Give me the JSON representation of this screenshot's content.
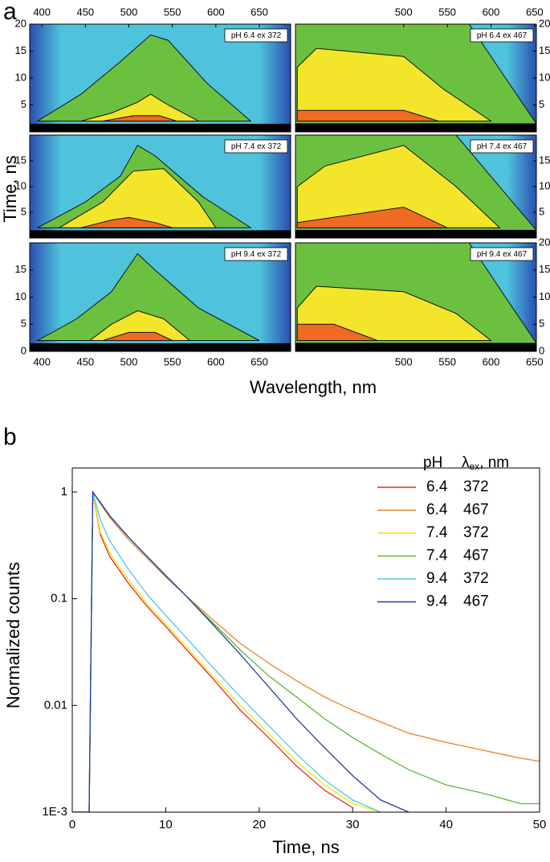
{
  "chart_data": [
    {
      "type": "contour",
      "label": "a",
      "xlabel": "Wavelength, nm",
      "ylabel": "Time, ns",
      "panels": [
        {
          "title": "pH 6.4 ex 372",
          "xlim": [
            386,
            686
          ],
          "ylim": [
            0,
            20
          ],
          "xaxis": "top",
          "yaxis": "left",
          "xticks": [
            400,
            450,
            500,
            550,
            600,
            650
          ],
          "yticks": [
            5,
            10,
            15,
            20
          ],
          "contours": [
            {
              "x": [
                395,
                445,
                490,
                525,
                545,
                590,
                640
              ],
              "y": [
                2,
                7,
                13,
                18,
                17,
                9,
                2
              ]
            },
            {
              "x": [
                445,
                480,
                510,
                525,
                545,
                580
              ],
              "y": [
                2,
                3.5,
                5.5,
                7,
                5,
                2
              ]
            },
            {
              "x": [
                470,
                505,
                535,
                555
              ],
              "y": [
                2,
                3,
                3,
                2
              ]
            }
          ]
        },
        {
          "title": "pH 6.4 ex 467",
          "xlim": [
            376,
            652
          ],
          "ylim": [
            0,
            20
          ],
          "xaxis": "top",
          "yaxis": "right",
          "xticks": [
            500,
            550,
            600,
            650
          ],
          "yticks": [
            5,
            10,
            15,
            20
          ],
          "contours": [
            {
              "x": [
                376,
                376,
                575,
                652,
                652
              ],
              "y": [
                1.5,
                20,
                20,
                1.5,
                1.5
              ]
            },
            {
              "x": [
                378,
                378,
                400,
                500,
                545,
                600
              ],
              "y": [
                2,
                12,
                15.5,
                14,
                8,
                2
              ]
            },
            {
              "x": [
                378,
                378,
                500,
                540
              ],
              "y": [
                2,
                4,
                4,
                2
              ]
            }
          ]
        },
        {
          "title": "pH 7.4 ex 372",
          "xlim": [
            386,
            686
          ],
          "ylim": [
            0,
            20
          ],
          "xaxis": "none",
          "yaxis": "left",
          "yticks": [
            5,
            10,
            15
          ],
          "contours": [
            {
              "x": [
                395,
                450,
                490,
                510,
                530,
                585,
                640
              ],
              "y": [
                2,
                7,
                12,
                18,
                16,
                8,
                2
              ]
            },
            {
              "x": [
                420,
                470,
                505,
                540,
                580,
                600
              ],
              "y": [
                2,
                7,
                13,
                13.5,
                7,
                2
              ]
            },
            {
              "x": [
                445,
                480,
                500,
                530,
                550
              ],
              "y": [
                2,
                3.5,
                4,
                3,
                2
              ]
            }
          ]
        },
        {
          "title": "pH 7.4 ex 467",
          "xlim": [
            376,
            652
          ],
          "ylim": [
            0,
            20
          ],
          "xaxis": "none",
          "yaxis": "right",
          "yticks": [
            5,
            10,
            15
          ],
          "contours": [
            {
              "x": [
                376,
                376,
                560,
                652,
                652
              ],
              "y": [
                1.5,
                20,
                20,
                1.5,
                1.5
              ]
            },
            {
              "x": [
                378,
                378,
                410,
                500,
                560,
                610
              ],
              "y": [
                2,
                10,
                14,
                18,
                10,
                2
              ]
            },
            {
              "x": [
                378,
                378,
                500,
                550
              ],
              "y": [
                2,
                3,
                6,
                2
              ]
            }
          ]
        },
        {
          "title": "pH 9.4 ex 372",
          "xlim": [
            386,
            686
          ],
          "ylim": [
            0,
            20
          ],
          "xaxis": "bottom",
          "yaxis": "left",
          "xticks": [
            400,
            450,
            500,
            550,
            600,
            650
          ],
          "yticks": [
            0,
            5,
            10,
            15
          ],
          "contours": [
            {
              "x": [
                395,
                440,
                480,
                510,
                530,
                580,
                650
              ],
              "y": [
                2,
                6,
                11,
                18,
                15,
                8,
                2
              ]
            },
            {
              "x": [
                455,
                480,
                510,
                540,
                570
              ],
              "y": [
                2,
                5,
                7.5,
                6,
                2
              ]
            },
            {
              "x": [
                470,
                500,
                530,
                550
              ],
              "y": [
                2,
                3.5,
                3.5,
                2
              ]
            }
          ]
        },
        {
          "title": "pH 9.4 ex 467",
          "xlim": [
            376,
            652
          ],
          "ylim": [
            0,
            20
          ],
          "xaxis": "bottom",
          "yaxis": "right",
          "xticks": [
            500,
            550,
            600,
            650
          ],
          "yticks": [
            0,
            5,
            10,
            15,
            20
          ],
          "contours": [
            {
              "x": [
                376,
                376,
                575,
                652,
                652
              ],
              "y": [
                1.5,
                20,
                20,
                1.5,
                1.5
              ]
            },
            {
              "x": [
                378,
                378,
                400,
                500,
                560,
                600
              ],
              "y": [
                2,
                8,
                12,
                11,
                7,
                2
              ]
            },
            {
              "x": [
                378,
                378,
                420,
                470
              ],
              "y": [
                2,
                5,
                5,
                2
              ]
            }
          ]
        }
      ]
    },
    {
      "type": "line",
      "label": "b",
      "xlabel": "Time, ns",
      "ylabel": "Normalized counts",
      "log_y": true,
      "xlim": [
        0,
        50
      ],
      "xticks": [
        0,
        10,
        20,
        30,
        40,
        50
      ],
      "ylim": [
        0.001,
        1.68
      ],
      "yticks": [
        {
          "value": 0.001,
          "label": "1E-3"
        },
        0.01,
        0.1,
        1
      ],
      "legend_header": [
        "pH",
        "λ",
        "ex",
        ", nm"
      ],
      "x": [
        0,
        1.8,
        2.2,
        3,
        4,
        6,
        8,
        10,
        12,
        15,
        18,
        21,
        24,
        27,
        30,
        33,
        36,
        40,
        44,
        48,
        50
      ],
      "series": [
        {
          "name": "6.4",
          "excitation": "372",
          "color": "#e8262a",
          "values": [
            0.001,
            0.001,
            1,
            0.4,
            0.25,
            0.14,
            0.085,
            0.055,
            0.035,
            0.018,
            0.009,
            0.005,
            0.0027,
            0.0016,
            0.0011,
            null,
            null,
            null,
            null,
            null,
            null
          ]
        },
        {
          "name": "6.4",
          "excitation": "467",
          "color": "#f07f22",
          "values": [
            0.001,
            0.001,
            1,
            0.78,
            0.58,
            0.36,
            0.24,
            0.16,
            0.11,
            0.064,
            0.038,
            0.025,
            0.017,
            0.012,
            0.009,
            0.007,
            0.0055,
            0.0045,
            0.0038,
            0.0032,
            0.003
          ]
        },
        {
          "name": "7.4",
          "excitation": "372",
          "color": "#f2e400",
          "values": [
            0.001,
            0.001,
            1,
            0.42,
            0.27,
            0.15,
            0.09,
            0.058,
            0.037,
            0.019,
            0.01,
            0.0055,
            0.003,
            0.0018,
            0.0012,
            0.001,
            null,
            null,
            null,
            null,
            null
          ]
        },
        {
          "name": "7.4",
          "excitation": "467",
          "color": "#5cb838",
          "values": [
            0.001,
            0.001,
            1,
            0.8,
            0.6,
            0.38,
            0.25,
            0.165,
            0.11,
            0.06,
            0.033,
            0.019,
            0.012,
            0.0075,
            0.005,
            0.0035,
            0.0025,
            0.0018,
            0.0015,
            0.0012,
            0.0012
          ]
        },
        {
          "name": "9.4",
          "excitation": "372",
          "color": "#50c8e8",
          "values": [
            0.001,
            0.001,
            1,
            0.55,
            0.35,
            0.19,
            0.11,
            0.07,
            0.045,
            0.023,
            0.012,
            0.0065,
            0.0035,
            0.002,
            0.0013,
            0.001,
            null,
            null,
            null,
            null,
            null
          ]
        },
        {
          "name": "9.4",
          "excitation": "467",
          "color": "#2040a0",
          "values": [
            0.001,
            0.001,
            1,
            0.8,
            0.6,
            0.38,
            0.25,
            0.165,
            0.11,
            0.058,
            0.03,
            0.015,
            0.0075,
            0.004,
            0.0022,
            0.0013,
            0.001,
            null,
            null,
            null,
            null
          ]
        }
      ]
    }
  ]
}
